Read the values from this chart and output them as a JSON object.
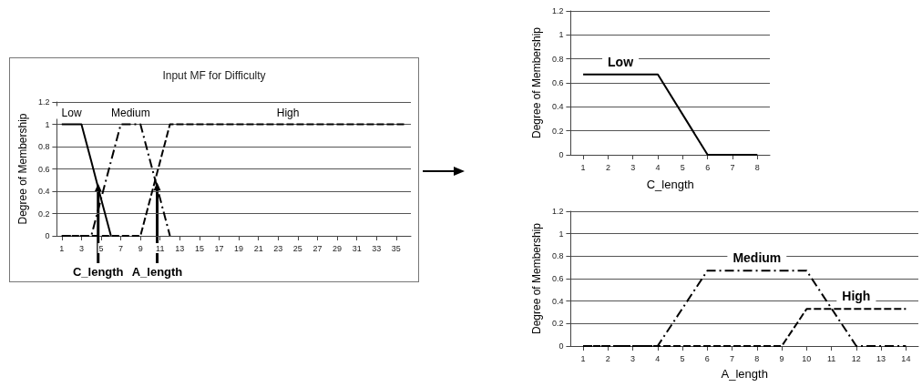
{
  "chart_data": [
    {
      "type": "line",
      "title": "Input MF for Difficulty",
      "ylabel": "Degree of Membership",
      "xlim": [
        0.5,
        36.5
      ],
      "xticks": [
        1,
        3,
        5,
        7,
        9,
        11,
        13,
        15,
        17,
        19,
        21,
        23,
        25,
        27,
        29,
        31,
        33,
        35
      ],
      "ylim": [
        0,
        1.2
      ],
      "yticks": [
        0,
        0.2,
        0.4,
        0.6,
        0.8,
        1,
        1.2
      ],
      "grid": "y",
      "marker": "none",
      "series": [
        {
          "name": "Low",
          "color": "#000000",
          "line_style": "solid",
          "x": [
            1,
            2,
            3,
            4,
            5,
            6
          ],
          "values": [
            1,
            1,
            1,
            0.67,
            0.33,
            0
          ]
        },
        {
          "name": "Medium",
          "color": "#000000",
          "line_style": "dashdot",
          "x": [
            1,
            4,
            7,
            9,
            12
          ],
          "values": [
            0,
            0,
            1,
            1,
            0
          ]
        },
        {
          "name": "High",
          "color": "#000000",
          "line_style": "dashed",
          "x": [
            1,
            9,
            12,
            36
          ],
          "values": [
            0,
            0,
            1,
            1
          ]
        }
      ],
      "annotations": [
        {
          "text": "C_length",
          "x": 4.7,
          "y": 0.47
        },
        {
          "text": "A_length",
          "x": 10.7,
          "y": 0.48
        }
      ]
    },
    {
      "type": "line",
      "ylabel": "Degree of Membership",
      "xlabel": "C_length",
      "xlim": [
        0.5,
        8.5
      ],
      "xticks": [
        1,
        2,
        3,
        4,
        5,
        6,
        7,
        8
      ],
      "ylim": [
        0,
        1.2
      ],
      "yticks": [
        0,
        0.2,
        0.4,
        0.6,
        0.8,
        1,
        1.2
      ],
      "grid": "y",
      "marker": "none",
      "series": [
        {
          "name": "Low",
          "color": "#000000",
          "line_style": "solid",
          "x": [
            1,
            4,
            6,
            8
          ],
          "values": [
            0.67,
            0.67,
            0,
            0
          ]
        }
      ]
    },
    {
      "type": "line",
      "ylabel": "Degree of Membership",
      "xlabel": "A_length",
      "xlim": [
        0.5,
        14.5
      ],
      "xticks": [
        1,
        2,
        3,
        4,
        5,
        6,
        7,
        8,
        9,
        10,
        11,
        12,
        13,
        14
      ],
      "ylim": [
        0,
        1.2
      ],
      "yticks": [
        0,
        0.2,
        0.4,
        0.6,
        0.8,
        1,
        1.2
      ],
      "grid": "y",
      "marker": "none",
      "series": [
        {
          "name": "Medium",
          "color": "#000000",
          "line_style": "dashdot",
          "x": [
            1,
            4,
            6,
            10,
            12,
            14
          ],
          "values": [
            0,
            0,
            0.67,
            0.67,
            0,
            0
          ]
        },
        {
          "name": "High",
          "color": "#000000",
          "line_style": "dashed",
          "x": [
            1,
            9,
            10,
            14
          ],
          "values": [
            0,
            0,
            0.33,
            0.33
          ]
        }
      ]
    }
  ]
}
